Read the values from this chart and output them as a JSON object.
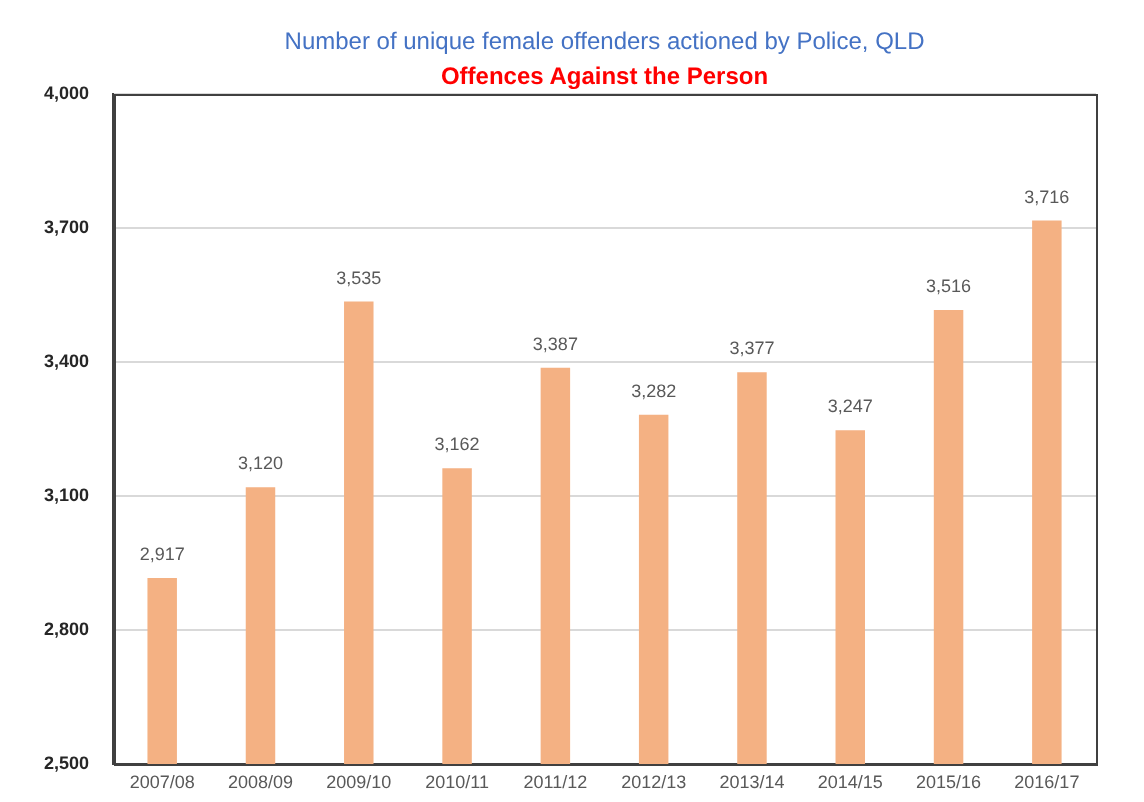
{
  "chart_data": {
    "type": "bar",
    "title": "Number of unique female offenders actioned by Police, QLD",
    "subtitle": "Offences Against the Person",
    "categories": [
      "2007/08",
      "2008/09",
      "2009/10",
      "2010/11",
      "2011/12",
      "2012/13",
      "2013/14",
      "2014/15",
      "2015/16",
      "2016/17"
    ],
    "values": [
      2917,
      3120,
      3535,
      3162,
      3387,
      3282,
      3377,
      3247,
      3516,
      3716
    ],
    "value_labels": [
      "2,917",
      "3,120",
      "3,535",
      "3,162",
      "3,387",
      "3,282",
      "3,377",
      "3,247",
      "3,516",
      "3,716"
    ],
    "color": "#f4b183",
    "ylim": [
      2500,
      4000
    ],
    "yticks": [
      {
        "value": 2500,
        "label": "2,500"
      },
      {
        "value": 2800,
        "label": "2,800"
      },
      {
        "value": 3100,
        "label": "3,100"
      },
      {
        "value": 3400,
        "label": "3,400"
      },
      {
        "value": 3700,
        "label": "3,700"
      },
      {
        "value": 4000,
        "label": "4,000"
      }
    ],
    "grid": "y",
    "legend": false
  }
}
